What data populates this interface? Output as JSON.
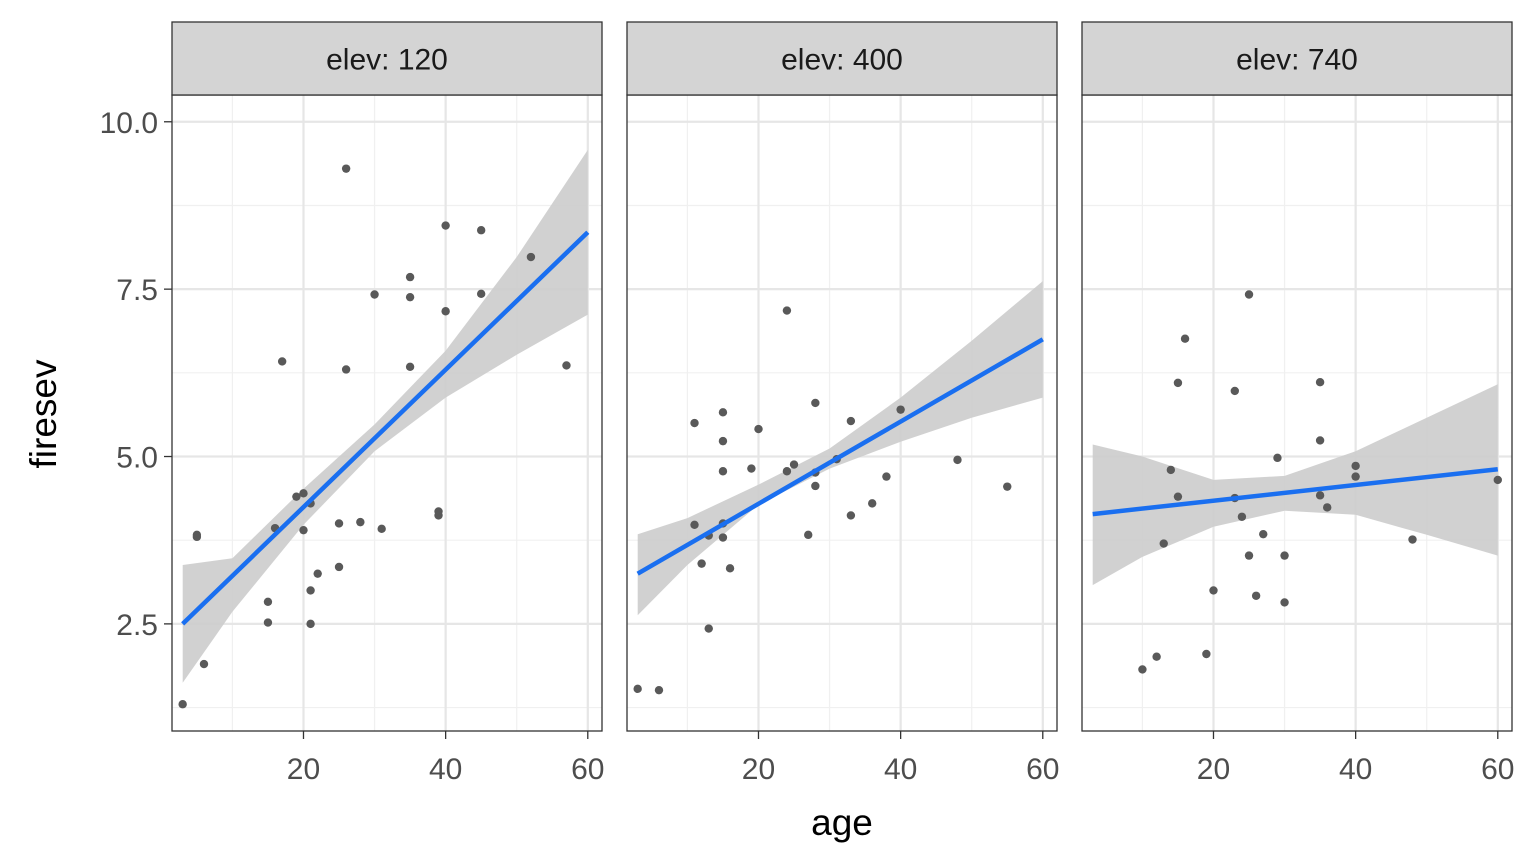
{
  "chart_data": {
    "type": "scatter",
    "facet_variable": "elev",
    "xlabel": "age",
    "ylabel": "firesev",
    "xlim": [
      1.5,
      62
    ],
    "ylim": [
      0.9,
      10.4
    ],
    "x_ticks": [
      20,
      40,
      60
    ],
    "y_ticks": [
      2.5,
      5.0,
      7.5,
      10.0
    ],
    "y_tick_labels": [
      "2.5",
      "5.0",
      "7.5",
      "10.0"
    ],
    "grid": true,
    "colors": {
      "point": "#595959",
      "fit_line": "#1a6ff0",
      "ribbon": "#cccccc",
      "strip_fill": "#d4d4d4",
      "grid_major": "#e6e6e6",
      "grid_minor": "#f0f0f0",
      "panel_border": "#333333"
    },
    "panels": [
      {
        "strip_label": "elev: 120",
        "points": [
          [
            3,
            1.3
          ],
          [
            5,
            3.8
          ],
          [
            5,
            3.83
          ],
          [
            6,
            1.9
          ],
          [
            15,
            2.83
          ],
          [
            15,
            2.52
          ],
          [
            16,
            3.93
          ],
          [
            17,
            6.42
          ],
          [
            19,
            4.4
          ],
          [
            20,
            4.45
          ],
          [
            20,
            3.9
          ],
          [
            21,
            4.3
          ],
          [
            21,
            3.0
          ],
          [
            21,
            2.5
          ],
          [
            22,
            3.25
          ],
          [
            25,
            4.0
          ],
          [
            25,
            3.35
          ],
          [
            26,
            9.3
          ],
          [
            26,
            6.3
          ],
          [
            28,
            4.02
          ],
          [
            30,
            7.42
          ],
          [
            31,
            3.92
          ],
          [
            35,
            7.68
          ],
          [
            35,
            7.38
          ],
          [
            35,
            6.34
          ],
          [
            39,
            4.18
          ],
          [
            39,
            4.12
          ],
          [
            40,
            8.45
          ],
          [
            40,
            7.17
          ],
          [
            45,
            8.38
          ],
          [
            45,
            7.43
          ],
          [
            52,
            7.98
          ],
          [
            57,
            6.36
          ]
        ],
        "fit": {
          "x": [
            3,
            60
          ],
          "y": [
            2.5,
            8.35
          ]
        },
        "band": {
          "x": [
            3,
            10,
            20,
            30,
            40,
            50,
            60
          ],
          "lower": [
            1.62,
            2.68,
            3.98,
            5.08,
            5.88,
            6.52,
            7.12
          ],
          "upper": [
            3.38,
            3.48,
            4.52,
            5.48,
            6.58,
            7.98,
            9.58
          ]
        }
      },
      {
        "strip_label": "elev: 400",
        "points": [
          [
            3,
            1.53
          ],
          [
            6,
            1.51
          ],
          [
            11,
            5.5
          ],
          [
            11,
            3.98
          ],
          [
            12,
            3.4
          ],
          [
            13,
            2.43
          ],
          [
            13,
            3.82
          ],
          [
            15,
            5.66
          ],
          [
            15,
            5.23
          ],
          [
            15,
            4.78
          ],
          [
            15,
            4.0
          ],
          [
            15,
            3.79
          ],
          [
            16,
            3.33
          ],
          [
            19,
            4.82
          ],
          [
            20,
            5.41
          ],
          [
            24,
            7.18
          ],
          [
            24,
            4.78
          ],
          [
            25,
            4.88
          ],
          [
            27,
            3.83
          ],
          [
            28,
            5.8
          ],
          [
            28,
            4.76
          ],
          [
            28,
            4.56
          ],
          [
            31,
            4.96
          ],
          [
            33,
            5.53
          ],
          [
            33,
            4.12
          ],
          [
            36,
            4.3
          ],
          [
            38,
            4.7
          ],
          [
            40,
            5.7
          ],
          [
            48,
            4.95
          ],
          [
            55,
            4.55
          ]
        ],
        "fit": {
          "x": [
            3,
            60
          ],
          "y": [
            3.25,
            6.75
          ]
        },
        "band": {
          "x": [
            3,
            10,
            20,
            30,
            40,
            50,
            60
          ],
          "lower": [
            2.63,
            3.38,
            4.28,
            4.82,
            5.22,
            5.58,
            5.88
          ],
          "upper": [
            3.84,
            4.08,
            4.58,
            5.12,
            5.88,
            6.73,
            7.62
          ]
        }
      },
      {
        "strip_label": "elev: 740",
        "points": [
          [
            10,
            1.82
          ],
          [
            12,
            2.01
          ],
          [
            13,
            3.7
          ],
          [
            14,
            4.8
          ],
          [
            15,
            6.1
          ],
          [
            15,
            4.4
          ],
          [
            16,
            6.76
          ],
          [
            19,
            2.05
          ],
          [
            20,
            3.0
          ],
          [
            23,
            5.98
          ],
          [
            23,
            4.38
          ],
          [
            24,
            4.1
          ],
          [
            25,
            7.42
          ],
          [
            25,
            3.52
          ],
          [
            26,
            2.92
          ],
          [
            27,
            3.84
          ],
          [
            29,
            4.98
          ],
          [
            30,
            3.52
          ],
          [
            30,
            2.82
          ],
          [
            35,
            6.11
          ],
          [
            35,
            5.24
          ],
          [
            35,
            4.42
          ],
          [
            36,
            4.24
          ],
          [
            40,
            4.86
          ],
          [
            40,
            4.7
          ],
          [
            48,
            3.76
          ],
          [
            60,
            4.65
          ]
        ],
        "fit": {
          "x": [
            3,
            60
          ],
          "y": [
            4.14,
            4.81
          ]
        },
        "band": {
          "x": [
            3,
            10,
            20,
            30,
            40,
            50,
            60
          ],
          "lower": [
            3.08,
            3.5,
            3.95,
            4.19,
            4.13,
            3.83,
            3.52
          ],
          "upper": [
            5.18,
            5.0,
            4.65,
            4.71,
            5.08,
            5.58,
            6.08
          ]
        }
      }
    ]
  }
}
